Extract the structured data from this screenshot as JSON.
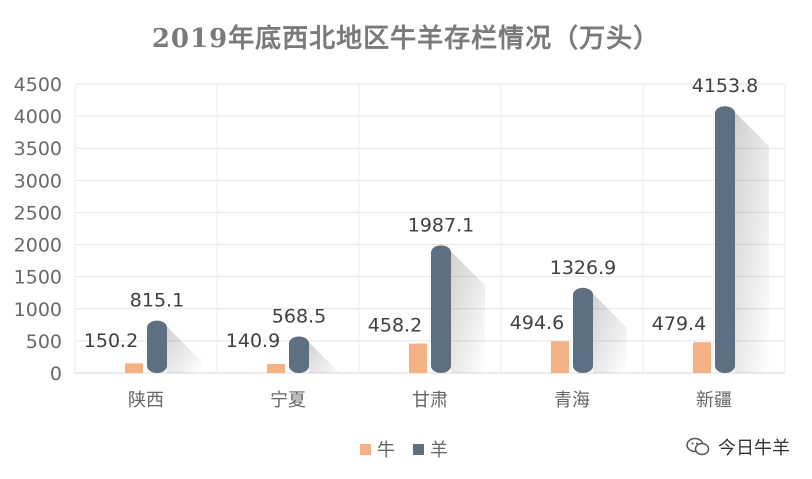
{
  "chart_data": {
    "type": "bar",
    "title": "2019年底西北地区牛羊存栏情况（万头）",
    "categories": [
      "陕西",
      "宁夏",
      "甘肃",
      "青海",
      "新疆"
    ],
    "series": [
      {
        "name": "牛",
        "values": [
          150.2,
          140.9,
          458.2,
          494.6,
          479.4
        ],
        "color": "#f4b183"
      },
      {
        "name": "羊",
        "values": [
          815.1,
          568.5,
          1987.1,
          1326.9,
          4153.8
        ],
        "color": "#5f6f82"
      }
    ],
    "ylim": [
      0,
      4500
    ],
    "yticks": [
      0,
      500,
      1000,
      1500,
      2000,
      2500,
      3000,
      3500,
      4000,
      4500
    ],
    "grid": true,
    "legend_position": "bottom"
  },
  "brand": {
    "icon": "wechat-icon",
    "text": "今日牛羊"
  }
}
